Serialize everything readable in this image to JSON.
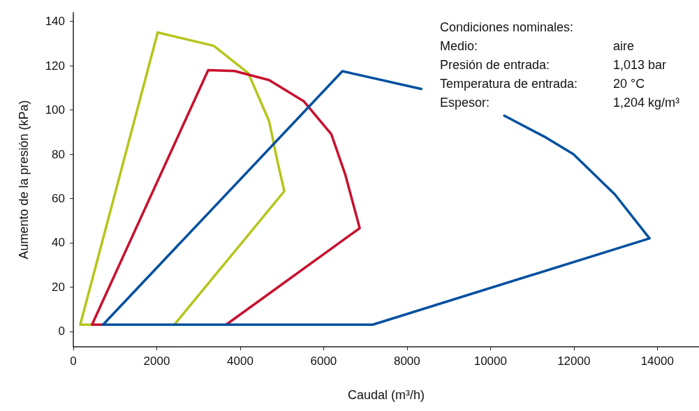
{
  "chart_data": {
    "type": "line",
    "xlabel": "Caudal (m³/h)",
    "ylabel": "Aumento de la presión (kPa)",
    "annotations": [
      "Condiciones nominales:",
      "Medio:\taire",
      "Presión de entrada:\t1,013 bar",
      "Temperatura de entrada:\t20 °C",
      "Espesor:\t1,204 kg/m³"
    ],
    "series": [
      {
        "color": "#b5c51a",
        "x": [
          166,
          2023,
          3366,
          4195,
          4693,
          4892,
          5058,
          2420,
          1000,
          448,
          166
        ],
        "values": [
          3,
          135,
          129,
          116.6,
          95,
          77,
          63.3,
          3,
          null,
          3,
          3
        ]
      },
      {
        "color": "#c8102e",
        "x": [
          448,
          3234,
          3864,
          4693,
          5522,
          6186,
          6517,
          6866,
          3665,
          1000,
          713,
          448
        ],
        "values": [
          3,
          118,
          117.6,
          113.5,
          104,
          89,
          71,
          46.6,
          3,
          null,
          3,
          3
        ]
      },
      {
        "color": "#0050a0",
        "x": [
          713,
          6451,
          8342,
          8600,
          10332,
          11327,
          11990,
          12985,
          13814,
          7181,
          713
        ],
        "values": [
          3,
          117.5,
          109.5,
          null,
          97.4,
          87.6,
          80,
          61.8,
          42,
          3,
          3
        ]
      }
    ],
    "xlim": [
      0,
      15000
    ],
    "xticks": [
      0,
      2000,
      4000,
      6000,
      8000,
      10000,
      12000,
      14000
    ],
    "ylim": [
      -7,
      144
    ],
    "yticks": [
      0,
      20,
      40,
      60,
      80,
      100,
      120,
      140
    ],
    "grid": false,
    "marker": "none",
    "line_style": "solid"
  }
}
